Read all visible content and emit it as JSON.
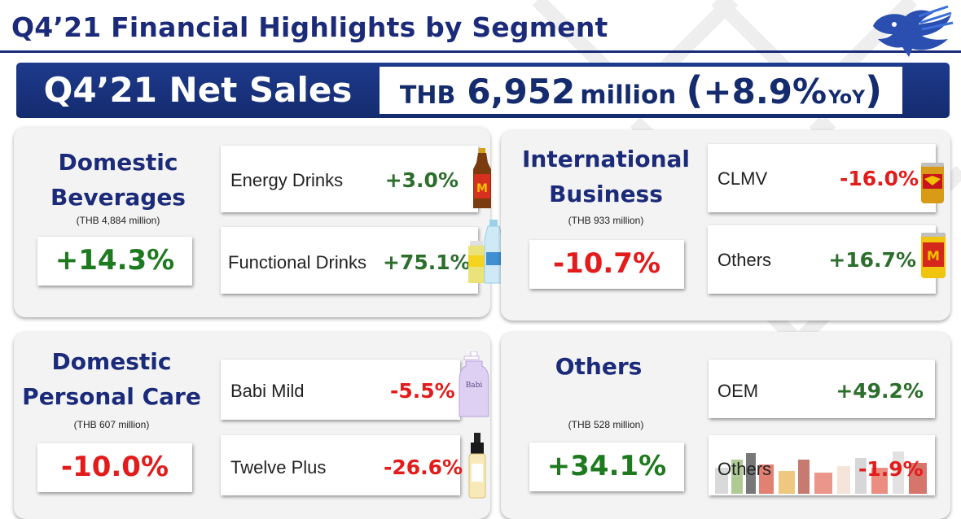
{
  "header": {
    "title": "Q4’21 Financial Highlights by Segment"
  },
  "banner": {
    "label": "Q4’21 Net Sales",
    "currency": "THB",
    "amount": "6,952",
    "unit": "million",
    "open_paren": "(",
    "change": "+8.9%",
    "suffix": "YoY",
    "close_paren": ")"
  },
  "segments": {
    "domestic_beverages": {
      "name_line1": "Domestic",
      "name_line2": "Beverages",
      "sales": "(THB 4,884 million)",
      "growth": "+14.3%",
      "items": [
        {
          "name": "Energy Drinks",
          "value": "+3.0%"
        },
        {
          "name": "Functional Drinks",
          "value": "+75.1%"
        }
      ]
    },
    "international_business": {
      "name_line1": "International",
      "name_line2": "Business",
      "sales": "(THB 933 million)",
      "growth": "-10.7%",
      "items": [
        {
          "name": "CLMV",
          "value": "-16.0%"
        },
        {
          "name": "Others",
          "value": "+16.7%"
        }
      ]
    },
    "domestic_personal_care": {
      "name_line1": "Domestic",
      "name_line2": "Personal Care",
      "sales": "(THB 607 million)",
      "growth": "-10.0%",
      "items": [
        {
          "name": "Babi Mild",
          "value": "-5.5%"
        },
        {
          "name": "Twelve Plus",
          "value": "-26.6%"
        }
      ]
    },
    "others": {
      "name": "Others",
      "sales": "(THB 528 million)",
      "growth": "+34.1%",
      "items": [
        {
          "name": "OEM",
          "value": "+49.2%"
        },
        {
          "name": "Others",
          "value": "-1.9%"
        }
      ]
    }
  },
  "colors": {
    "brand_navy": "#1b2b7a",
    "positive": "#2c6e2c",
    "negative": "#e21b1b"
  }
}
